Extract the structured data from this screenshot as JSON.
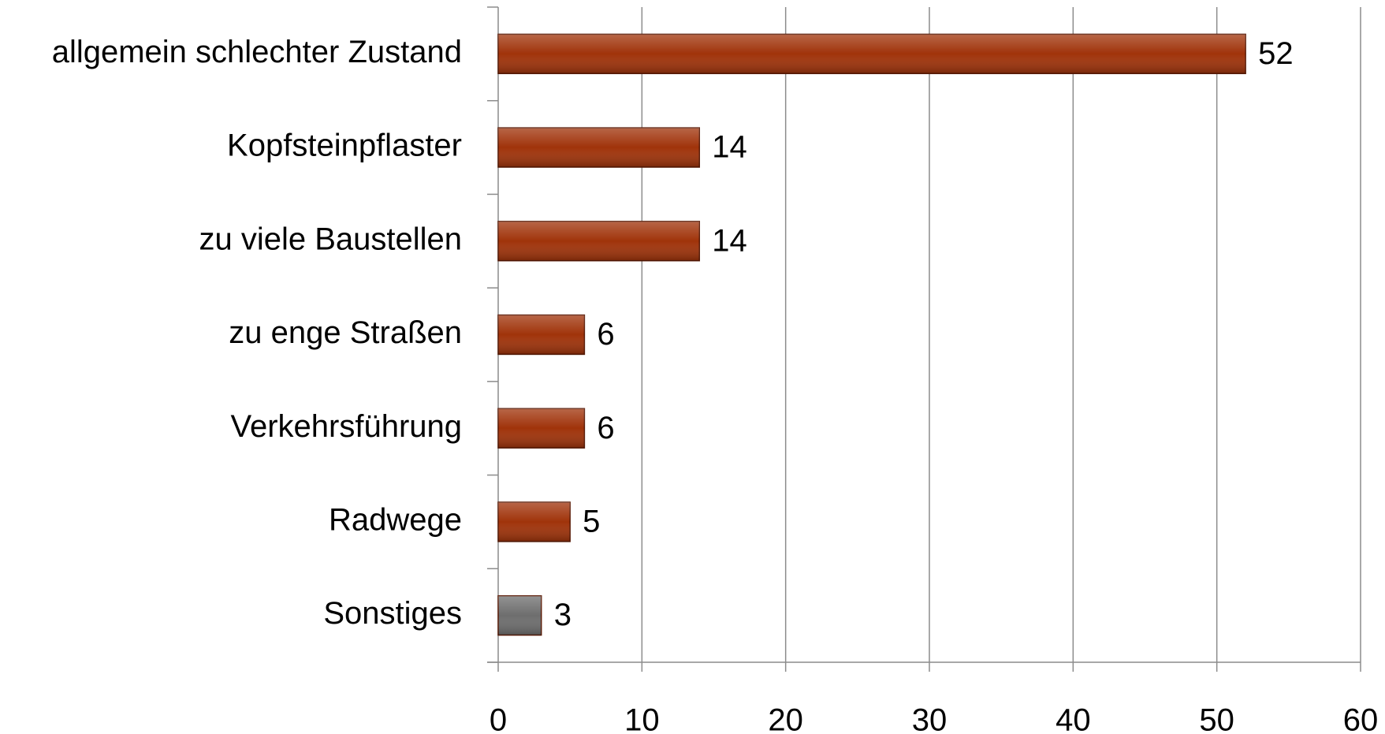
{
  "chart_data": {
    "type": "barh",
    "categories": [
      "allgemein schlechter Zustand",
      "Kopfsteinpflaster",
      "zu viele Baustellen",
      "zu enge Straßen",
      "Verkehrsführung",
      "Radwege",
      "Sonstiges"
    ],
    "values": [
      52,
      14,
      14,
      6,
      6,
      5,
      3
    ],
    "colors": [
      "#a0330a",
      "#a0330a",
      "#a0330a",
      "#a0330a",
      "#a0330a",
      "#a0330a",
      "#6e6e6e"
    ],
    "xlim": [
      0,
      60
    ],
    "xticks": [
      0,
      10,
      20,
      30,
      40,
      50,
      60
    ],
    "grid": true
  }
}
